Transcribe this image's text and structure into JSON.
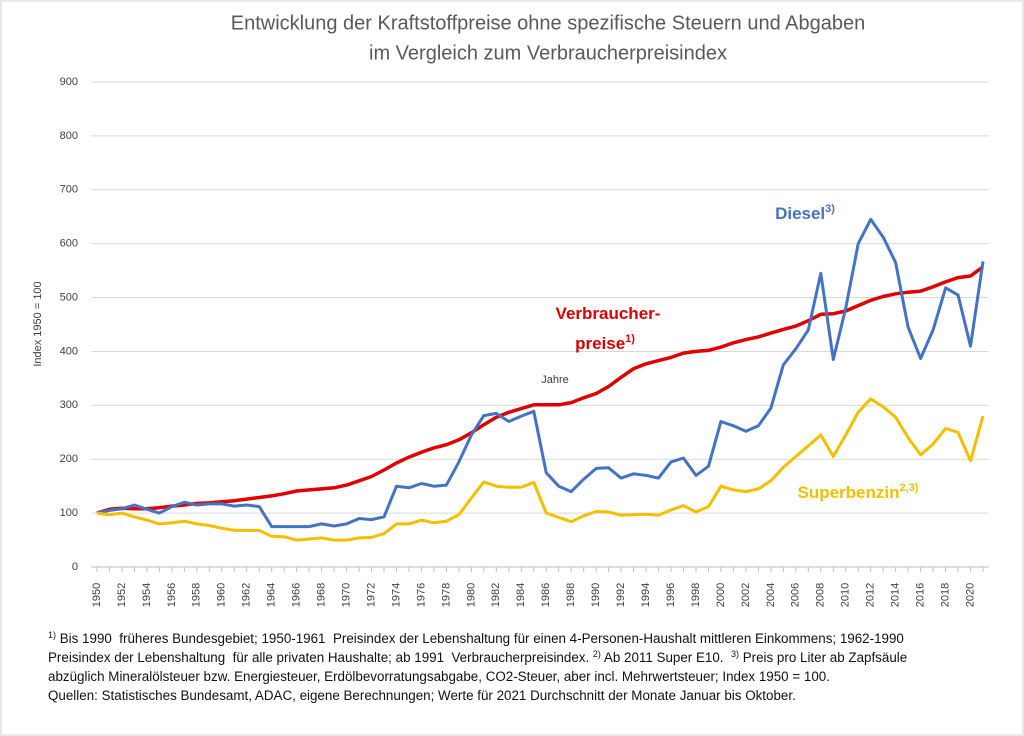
{
  "chart_data": {
    "type": "line",
    "title": [
      "Entwicklung der Kraftstoffpreise ohne spezifische Steuern und Abgaben",
      "im Vergleich zum Verbraucherpreisindex"
    ],
    "y_label": "Index 1950 = 100",
    "x_label": "Jahre",
    "x": [
      1950,
      1951,
      1952,
      1953,
      1954,
      1955,
      1956,
      1957,
      1958,
      1959,
      1960,
      1961,
      1962,
      1963,
      1964,
      1965,
      1966,
      1967,
      1968,
      1969,
      1970,
      1971,
      1972,
      1973,
      1974,
      1975,
      1976,
      1977,
      1978,
      1979,
      1980,
      1981,
      1982,
      1983,
      1984,
      1985,
      1986,
      1987,
      1988,
      1989,
      1990,
      1991,
      1992,
      1993,
      1994,
      1995,
      1996,
      1997,
      1998,
      1999,
      2000,
      2001,
      2002,
      2003,
      2004,
      2005,
      2006,
      2007,
      2008,
      2009,
      2010,
      2011,
      2012,
      2013,
      2014,
      2015,
      2016,
      2017,
      2018,
      2019,
      2020,
      2021
    ],
    "xlim": [
      1950,
      2021
    ],
    "xticks": [
      1950,
      1952,
      1954,
      1956,
      1958,
      1960,
      1962,
      1964,
      1966,
      1968,
      1970,
      1972,
      1974,
      1976,
      1978,
      1980,
      1982,
      1984,
      1986,
      1988,
      1990,
      1992,
      1994,
      1996,
      1998,
      2000,
      2002,
      2004,
      2006,
      2008,
      2010,
      2012,
      2014,
      2016,
      2018,
      2020
    ],
    "ylim": [
      0,
      900
    ],
    "yticks": [
      0,
      100,
      200,
      300,
      400,
      500,
      600,
      700,
      800,
      900
    ],
    "grid": true,
    "series": [
      {
        "name": "Verbraucherpreise",
        "color": "#e00000",
        "values": [
          100,
          107,
          109,
          108,
          108,
          110,
          113,
          115,
          118,
          119,
          121,
          123,
          126,
          129,
          132,
          136,
          141,
          143,
          145,
          147,
          152,
          160,
          168,
          180,
          193,
          204,
          213,
          221,
          227,
          236,
          249,
          264,
          278,
          287,
          294,
          301,
          301,
          301,
          305,
          314,
          322,
          335,
          352,
          368,
          377,
          383,
          389,
          397,
          400,
          402,
          408,
          416,
          422,
          427,
          434,
          441,
          447,
          457,
          469,
          470,
          475,
          485,
          495,
          502,
          507,
          510,
          512,
          520,
          529,
          537,
          540,
          557
        ]
      },
      {
        "name": "Diesel",
        "color": "#4472c4",
        "values": [
          100,
          105,
          108,
          115,
          107,
          100,
          112,
          120,
          115,
          117,
          117,
          113,
          115,
          112,
          75,
          75,
          75,
          75,
          80,
          76,
          80,
          90,
          88,
          93,
          150,
          147,
          155,
          150,
          152,
          195,
          245,
          281,
          285,
          270,
          280,
          289,
          175,
          150,
          140,
          163,
          183,
          184,
          165,
          173,
          170,
          165,
          195,
          202,
          170,
          187,
          270,
          262,
          252,
          262,
          295,
          375,
          405,
          440,
          545,
          385,
          480,
          600,
          645,
          612,
          565,
          445,
          387,
          440,
          518,
          505,
          410,
          567
        ]
      },
      {
        "name": "Superbenzin",
        "color": "#f5bf00",
        "values": [
          100,
          97,
          100,
          93,
          87,
          80,
          82,
          85,
          80,
          77,
          72,
          68,
          68,
          68,
          57,
          56,
          50,
          52,
          54,
          50,
          50,
          54,
          55,
          62,
          80,
          80,
          87,
          82,
          85,
          97,
          128,
          158,
          150,
          148,
          148,
          157,
          100,
          92,
          84,
          95,
          103,
          102,
          96,
          97,
          98,
          96,
          106,
          114,
          102,
          112,
          150,
          143,
          140,
          145,
          160,
          185,
          205,
          225,
          245,
          205,
          245,
          287,
          312,
          297,
          278,
          240,
          208,
          228,
          257,
          250,
          197,
          280
        ]
      }
    ],
    "annotations": [
      {
        "text": "Verbraucher-",
        "color": "#e00000"
      },
      {
        "text": "preise",
        "sup": "1)",
        "color": "#e00000"
      },
      {
        "text": "Diesel",
        "sup": "3)",
        "color": "#4472c4"
      },
      {
        "text": "Superbenzin",
        "sup": "2,3)",
        "color": "#f5bf00"
      }
    ],
    "footnotes": [
      [
        {
          "text": "1)",
          "sup": true
        },
        {
          "text": " Bis 1990  früheres Bundesgebiet; 1950-1961  Preisindex der Lebenshaltung für einen 4-Personen-Haushalt mittleren Einkommens; 1962-1990"
        }
      ],
      [
        {
          "text": "Preisindex der Lebenshaltung  für alle privaten Haushalte; ab 1991  Verbraucherpreisindex. "
        },
        {
          "text": "2)",
          "sup": true
        },
        {
          "text": " Ab 2011 Super E10.  "
        },
        {
          "text": "3)",
          "sup": true
        },
        {
          "text": " Preis pro Liter ab Zapfsäule"
        }
      ],
      [
        {
          "text": "abzüglich Mineralölsteuer bzw. Energiesteuer, Erdölbevorratungsabgabe, CO2-Steuer, aber incl. Mehrwertsteuer; Index 1950 = 100."
        }
      ],
      [
        {
          "text": "Quellen: Statistisches Bundesamt, ADAC, eigene Berechnungen; Werte für 2021 Durchschnitt der Monate Januar bis Oktober."
        }
      ]
    ]
  }
}
